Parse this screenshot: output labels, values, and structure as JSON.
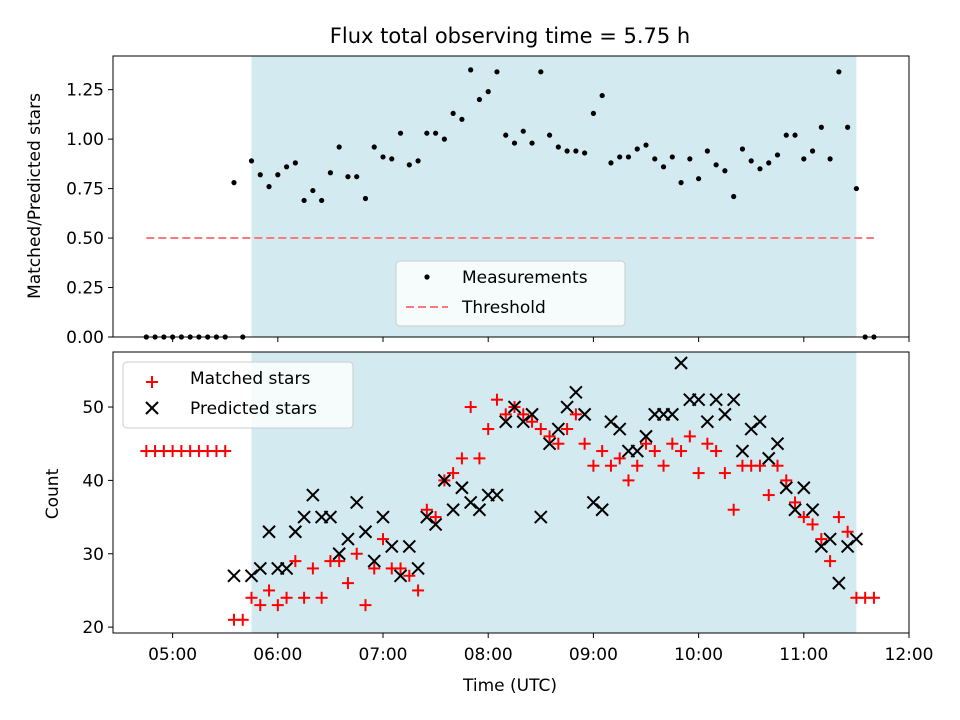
{
  "chart_data": [
    {
      "type": "scatter",
      "title": "Flux total observing time = 5.75 h",
      "ylabel": "Matched/Predicted stars",
      "xlabel": "",
      "ylim": [
        0,
        1.42
      ],
      "xlim": [
        "04:26",
        "12:00"
      ],
      "yticks": [
        0.0,
        0.25,
        0.5,
        0.75,
        1.0,
        1.25
      ],
      "ytick_labels": [
        "0.00",
        "0.25",
        "0.50",
        "0.75",
        "1.00",
        "1.25"
      ],
      "shaded_span": [
        "05:45",
        "11:30"
      ],
      "shaded_color": "#d3eaf1",
      "legend_position": "lower-center",
      "legend": [
        {
          "label": "Measurements",
          "marker": "dot",
          "color": "#000000"
        },
        {
          "label": "Threshold",
          "marker": "dashed-line",
          "color": "#f47c7c"
        }
      ],
      "threshold": {
        "y": 0.5,
        "x_range": [
          "04:45",
          "11:40"
        ]
      },
      "series": [
        {
          "name": "Measurements",
          "points": [
            [
              "04:45",
              0
            ],
            [
              "04:50",
              0
            ],
            [
              "04:55",
              0
            ],
            [
              "05:00",
              0
            ],
            [
              "05:05",
              0
            ],
            [
              "05:10",
              0
            ],
            [
              "05:15",
              0
            ],
            [
              "05:20",
              0
            ],
            [
              "05:25",
              0
            ],
            [
              "05:30",
              0
            ],
            [
              "05:35",
              0.78
            ],
            [
              "05:40",
              0
            ],
            [
              "05:45",
              0.89
            ],
            [
              "05:50",
              0.82
            ],
            [
              "05:55",
              0.76
            ],
            [
              "06:00",
              0.82
            ],
            [
              "06:05",
              0.86
            ],
            [
              "06:10",
              0.88
            ],
            [
              "06:15",
              0.69
            ],
            [
              "06:20",
              0.74
            ],
            [
              "06:25",
              0.69
            ],
            [
              "06:30",
              0.83
            ],
            [
              "06:35",
              0.96
            ],
            [
              "06:40",
              0.81
            ],
            [
              "06:45",
              0.81
            ],
            [
              "06:50",
              0.7
            ],
            [
              "06:55",
              0.96
            ],
            [
              "07:00",
              0.91
            ],
            [
              "07:05",
              0.9
            ],
            [
              "07:10",
              1.03
            ],
            [
              "07:15",
              0.87
            ],
            [
              "07:20",
              0.89
            ],
            [
              "07:25",
              1.03
            ],
            [
              "07:30",
              1.03
            ],
            [
              "07:35",
              1.0
            ],
            [
              "07:40",
              1.13
            ],
            [
              "07:45",
              1.1
            ],
            [
              "07:50",
              1.35
            ],
            [
              "07:55",
              1.2
            ],
            [
              "08:00",
              1.24
            ],
            [
              "08:05",
              1.34
            ],
            [
              "08:10",
              1.02
            ],
            [
              "08:15",
              0.98
            ],
            [
              "08:20",
              1.04
            ],
            [
              "08:25",
              0.98
            ],
            [
              "08:30",
              1.34
            ],
            [
              "08:35",
              1.02
            ],
            [
              "08:40",
              0.96
            ],
            [
              "08:45",
              0.94
            ],
            [
              "08:50",
              0.94
            ],
            [
              "08:55",
              0.93
            ],
            [
              "09:00",
              1.13
            ],
            [
              "09:05",
              1.22
            ],
            [
              "09:10",
              0.88
            ],
            [
              "09:15",
              0.91
            ],
            [
              "09:20",
              0.91
            ],
            [
              "09:25",
              0.95
            ],
            [
              "09:30",
              0.97
            ],
            [
              "09:35",
              0.9
            ],
            [
              "09:40",
              0.86
            ],
            [
              "09:45",
              0.91
            ],
            [
              "09:50",
              0.78
            ],
            [
              "09:55",
              0.9
            ],
            [
              "10:00",
              0.8
            ],
            [
              "10:05",
              0.94
            ],
            [
              "10:10",
              0.87
            ],
            [
              "10:15",
              0.84
            ],
            [
              "10:20",
              0.71
            ],
            [
              "10:25",
              0.95
            ],
            [
              "10:30",
              0.89
            ],
            [
              "10:35",
              0.85
            ],
            [
              "10:40",
              0.88
            ],
            [
              "10:45",
              0.92
            ],
            [
              "10:50",
              1.02
            ],
            [
              "10:55",
              1.02
            ],
            [
              "11:00",
              0.9
            ],
            [
              "11:05",
              0.94
            ],
            [
              "11:10",
              1.06
            ],
            [
              "11:15",
              0.9
            ],
            [
              "11:20",
              1.34
            ],
            [
              "11:25",
              1.06
            ],
            [
              "11:30",
              0.75
            ],
            [
              "11:35",
              0
            ],
            [
              "11:40",
              0
            ]
          ]
        }
      ]
    },
    {
      "type": "scatter",
      "title": "",
      "ylabel": "Count",
      "xlabel": "Time (UTC)",
      "ylim": [
        19.2,
        57.5
      ],
      "xlim": [
        "04:26",
        "12:00"
      ],
      "yticks": [
        20,
        30,
        40,
        50
      ],
      "ytick_labels": [
        "20",
        "30",
        "40",
        "50"
      ],
      "xticks": [
        "05:00",
        "06:00",
        "07:00",
        "08:00",
        "09:00",
        "10:00",
        "11:00",
        "12:00"
      ],
      "shaded_span": [
        "05:45",
        "11:30"
      ],
      "shaded_color": "#d3eaf1",
      "legend_position": "top-left",
      "legend": [
        {
          "label": "Matched stars",
          "marker": "plus",
          "color": "#ff0000"
        },
        {
          "label": "Predicted stars",
          "marker": "x",
          "color": "#000000"
        }
      ],
      "series": [
        {
          "name": "Matched stars",
          "points": [
            [
              "04:45",
              44
            ],
            [
              "04:50",
              44
            ],
            [
              "04:55",
              44
            ],
            [
              "05:00",
              44
            ],
            [
              "05:05",
              44
            ],
            [
              "05:10",
              44
            ],
            [
              "05:15",
              44
            ],
            [
              "05:20",
              44
            ],
            [
              "05:25",
              44
            ],
            [
              "05:30",
              44
            ],
            [
              "05:35",
              21
            ],
            [
              "05:40",
              21
            ],
            [
              "05:45",
              24
            ],
            [
              "05:50",
              23
            ],
            [
              "05:55",
              25
            ],
            [
              "06:00",
              23
            ],
            [
              "06:05",
              24
            ],
            [
              "06:10",
              29
            ],
            [
              "06:15",
              24
            ],
            [
              "06:20",
              28
            ],
            [
              "06:25",
              24
            ],
            [
              "06:30",
              29
            ],
            [
              "06:35",
              29
            ],
            [
              "06:40",
              26
            ],
            [
              "06:45",
              30
            ],
            [
              "06:50",
              23
            ],
            [
              "06:55",
              28
            ],
            [
              "07:00",
              32
            ],
            [
              "07:05",
              28
            ],
            [
              "07:10",
              28
            ],
            [
              "07:15",
              27
            ],
            [
              "07:20",
              25
            ],
            [
              "07:25",
              36
            ],
            [
              "07:30",
              35
            ],
            [
              "07:35",
              40
            ],
            [
              "07:40",
              41
            ],
            [
              "07:45",
              43
            ],
            [
              "07:50",
              50
            ],
            [
              "07:55",
              43
            ],
            [
              "08:00",
              47
            ],
            [
              "08:05",
              51
            ],
            [
              "08:10",
              49
            ],
            [
              "08:15",
              50
            ],
            [
              "08:20",
              49
            ],
            [
              "08:25",
              48
            ],
            [
              "08:30",
              47
            ],
            [
              "08:35",
              46
            ],
            [
              "08:40",
              45
            ],
            [
              "08:45",
              47
            ],
            [
              "08:50",
              49
            ],
            [
              "08:55",
              45
            ],
            [
              "09:00",
              42
            ],
            [
              "09:05",
              44
            ],
            [
              "09:10",
              42
            ],
            [
              "09:15",
              43
            ],
            [
              "09:20",
              40
            ],
            [
              "09:25",
              42
            ],
            [
              "09:30",
              45
            ],
            [
              "09:35",
              44
            ],
            [
              "09:40",
              42
            ],
            [
              "09:45",
              45
            ],
            [
              "09:50",
              44
            ],
            [
              "09:55",
              46
            ],
            [
              "10:00",
              41
            ],
            [
              "10:05",
              45
            ],
            [
              "10:10",
              44
            ],
            [
              "10:15",
              41
            ],
            [
              "10:20",
              36
            ],
            [
              "10:25",
              42
            ],
            [
              "10:30",
              42
            ],
            [
              "10:35",
              42
            ],
            [
              "10:40",
              38
            ],
            [
              "10:45",
              42
            ],
            [
              "10:50",
              40
            ],
            [
              "10:55",
              37
            ],
            [
              "11:00",
              35
            ],
            [
              "11:05",
              34
            ],
            [
              "11:10",
              32
            ],
            [
              "11:15",
              29
            ],
            [
              "11:20",
              35
            ],
            [
              "11:25",
              33
            ],
            [
              "11:30",
              24
            ],
            [
              "11:35",
              24
            ],
            [
              "11:40",
              24
            ]
          ]
        },
        {
          "name": "Predicted stars",
          "points": [
            [
              "05:35",
              27
            ],
            [
              "05:45",
              27
            ],
            [
              "05:50",
              28
            ],
            [
              "05:55",
              33
            ],
            [
              "06:00",
              28
            ],
            [
              "06:05",
              28
            ],
            [
              "06:10",
              33
            ],
            [
              "06:15",
              35
            ],
            [
              "06:20",
              38
            ],
            [
              "06:25",
              35
            ],
            [
              "06:30",
              35
            ],
            [
              "06:35",
              30
            ],
            [
              "06:40",
              32
            ],
            [
              "06:45",
              37
            ],
            [
              "06:50",
              33
            ],
            [
              "06:55",
              29
            ],
            [
              "07:00",
              35
            ],
            [
              "07:05",
              31
            ],
            [
              "07:10",
              27
            ],
            [
              "07:15",
              31
            ],
            [
              "07:20",
              28
            ],
            [
              "07:25",
              35
            ],
            [
              "07:30",
              34
            ],
            [
              "07:35",
              40
            ],
            [
              "07:40",
              36
            ],
            [
              "07:45",
              39
            ],
            [
              "07:50",
              37
            ],
            [
              "07:55",
              36
            ],
            [
              "08:00",
              38
            ],
            [
              "08:05",
              38
            ],
            [
              "08:10",
              48
            ],
            [
              "08:15",
              50
            ],
            [
              "08:20",
              48
            ],
            [
              "08:25",
              49
            ],
            [
              "08:30",
              35
            ],
            [
              "08:35",
              45
            ],
            [
              "08:40",
              47
            ],
            [
              "08:45",
              50
            ],
            [
              "08:50",
              52
            ],
            [
              "08:55",
              49
            ],
            [
              "09:00",
              37
            ],
            [
              "09:05",
              36
            ],
            [
              "09:10",
              48
            ],
            [
              "09:15",
              47
            ],
            [
              "09:20",
              44
            ],
            [
              "09:25",
              44
            ],
            [
              "09:30",
              46
            ],
            [
              "09:35",
              49
            ],
            [
              "09:40",
              49
            ],
            [
              "09:45",
              49
            ],
            [
              "09:50",
              56
            ],
            [
              "09:55",
              51
            ],
            [
              "10:00",
              51
            ],
            [
              "10:05",
              48
            ],
            [
              "10:10",
              51
            ],
            [
              "10:15",
              49
            ],
            [
              "10:20",
              51
            ],
            [
              "10:25",
              44
            ],
            [
              "10:30",
              47
            ],
            [
              "10:35",
              48
            ],
            [
              "10:40",
              43
            ],
            [
              "10:45",
              45
            ],
            [
              "10:50",
              39
            ],
            [
              "10:55",
              36
            ],
            [
              "11:00",
              39
            ],
            [
              "11:05",
              36
            ],
            [
              "11:10",
              31
            ],
            [
              "11:15",
              32
            ],
            [
              "11:20",
              26
            ],
            [
              "11:25",
              31
            ],
            [
              "11:30",
              32
            ]
          ]
        }
      ]
    }
  ]
}
